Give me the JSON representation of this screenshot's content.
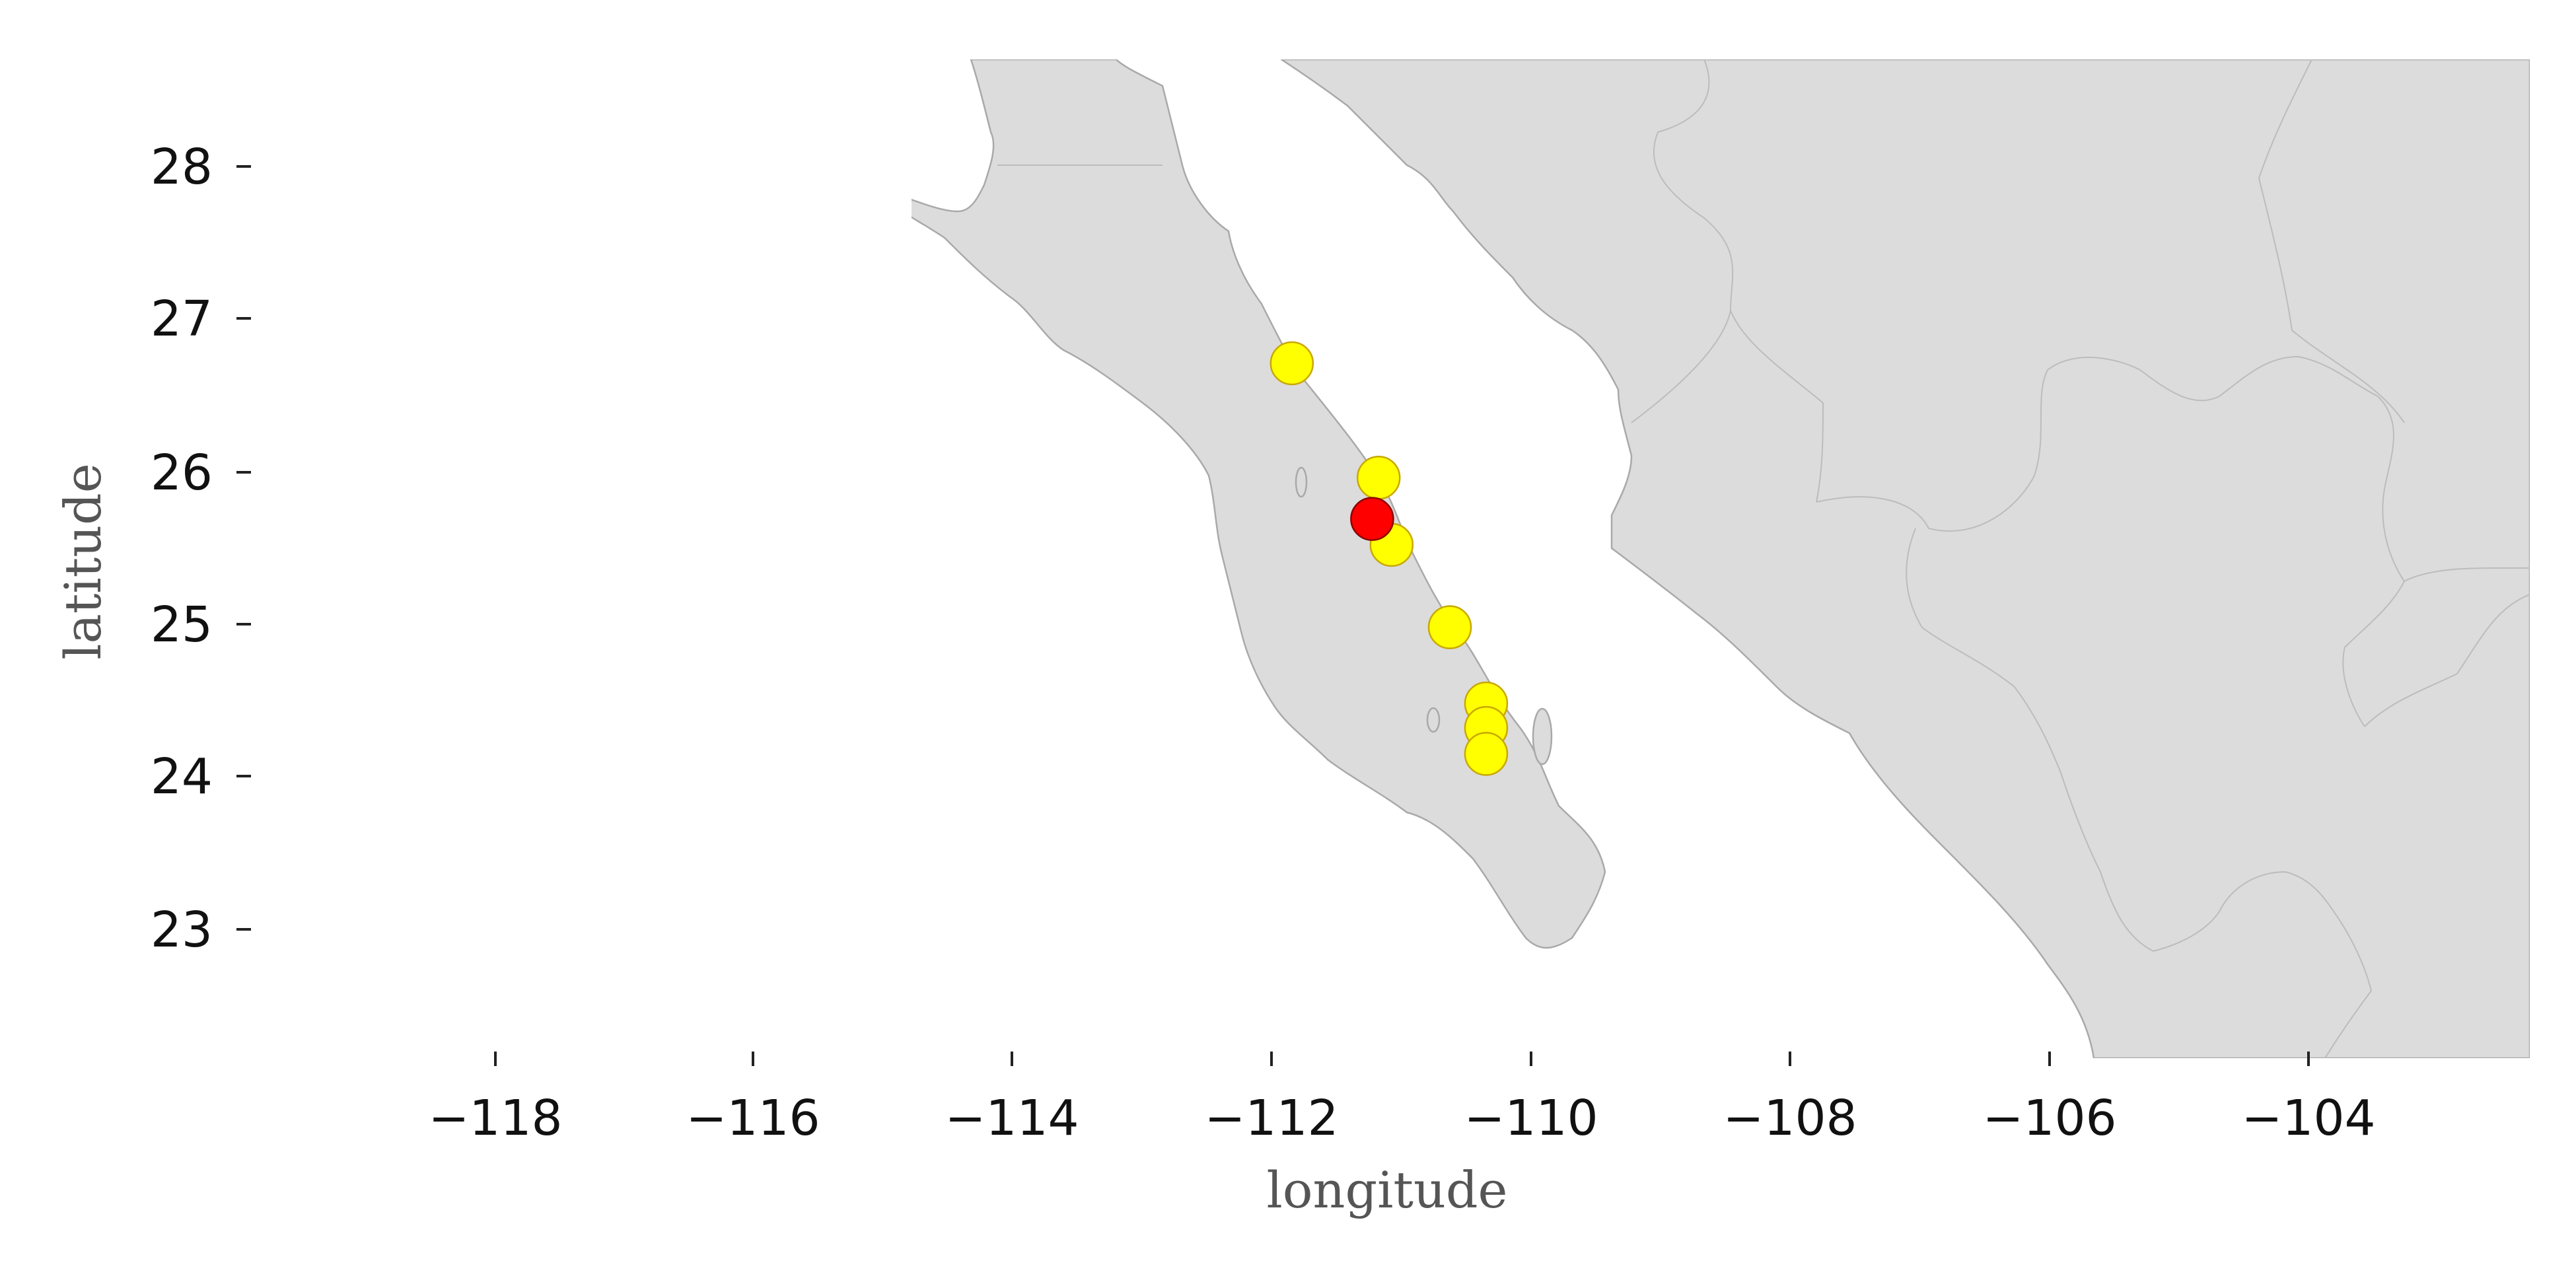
{
  "chart_data": {
    "type": "scatter",
    "subtype": "geographic map",
    "title": "",
    "xlabel": "longitude",
    "ylabel": "latitude",
    "xlim": [
      -120.2,
      -102.4
    ],
    "ylim": [
      22.2,
      28.8
    ],
    "x_ticks": [
      "−118",
      "−116",
      "−114",
      "−112",
      "−110",
      "−108",
      "−106",
      "−104"
    ],
    "x_tick_values": [
      -118,
      -116,
      -114,
      -112,
      -110,
      -108,
      -106,
      -104
    ],
    "y_ticks": [
      "23",
      "24",
      "25",
      "26",
      "27",
      "28"
    ],
    "y_tick_values": [
      23,
      24,
      25,
      26,
      27,
      28
    ],
    "grid": false,
    "land_color": "#dcdcdc",
    "coast_color": "#a9a9a9",
    "series": [
      {
        "color": "#ffff00",
        "edge_color": "#c8a800",
        "points": [
          {
            "lon": -111.85,
            "lat": 26.71
          },
          {
            "lon": -111.18,
            "lat": 25.96
          },
          {
            "lon": -111.08,
            "lat": 25.52
          },
          {
            "lon": -110.63,
            "lat": 24.98
          },
          {
            "lon": -110.35,
            "lat": 24.48
          },
          {
            "lon": -110.35,
            "lat": 24.32
          },
          {
            "lon": -110.35,
            "lat": 24.15
          }
        ]
      },
      {
        "color": "#ff0000",
        "edge_color": "#8b0000",
        "points": [
          {
            "lon": -111.23,
            "lat": 25.69
          }
        ]
      }
    ]
  }
}
